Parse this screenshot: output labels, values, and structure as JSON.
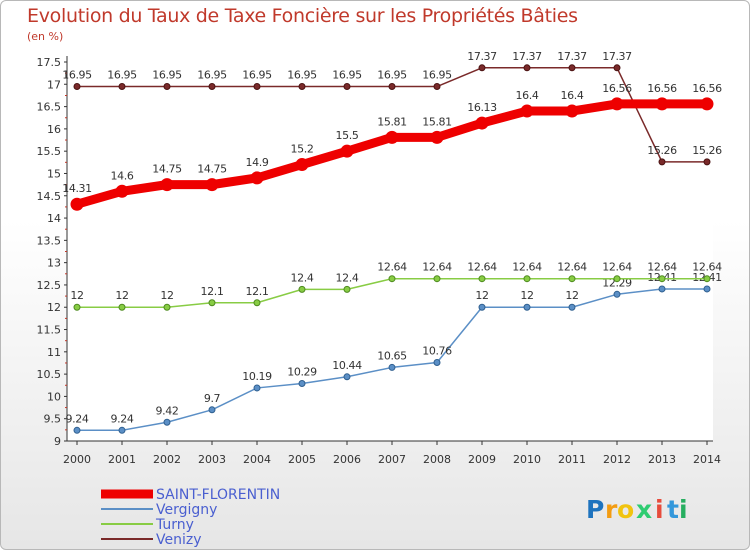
{
  "chart_data": {
    "type": "line",
    "title": "Evolution du Taux de Taxe Foncière sur les Propriétés Bâties",
    "subtitle": "(en %)",
    "x": [
      2000,
      2001,
      2002,
      2003,
      2004,
      2005,
      2006,
      2007,
      2008,
      2009,
      2010,
      2011,
      2012,
      2013,
      2014
    ],
    "ylim": [
      9,
      17.5
    ],
    "yticks": [
      9,
      9.5,
      10,
      10.5,
      11,
      11.5,
      12,
      12.5,
      13,
      13.5,
      14,
      14.5,
      15,
      15.5,
      16,
      16.5,
      17,
      17.5
    ],
    "series": [
      {
        "name": "SAINT-FLORENTIN",
        "color": "#ee0000",
        "labels": [
          "14.31",
          "14.6",
          "14.75",
          "14.75",
          "14.9",
          "15.2",
          "15.5",
          "15.81",
          "15.81",
          "16.13",
          "16.4",
          "16.4",
          "16.56",
          "16.56",
          "16.56"
        ],
        "values": [
          14.31,
          14.6,
          14.75,
          14.75,
          14.9,
          15.2,
          15.5,
          15.81,
          15.81,
          16.13,
          16.4,
          16.4,
          16.56,
          16.56,
          16.56
        ]
      },
      {
        "name": "Vergigny",
        "color": "#5b8fc6",
        "labels": [
          "9.24",
          "9.24",
          "9.42",
          "9.7",
          "10.19",
          "10.29",
          "10.44",
          "10.65",
          "10.76",
          "12",
          "12",
          "12",
          "12.29",
          "12.41",
          "12.41"
        ],
        "values": [
          9.24,
          9.24,
          9.42,
          9.7,
          10.19,
          10.29,
          10.44,
          10.65,
          10.76,
          12,
          12,
          12,
          12.29,
          12.41,
          12.41
        ]
      },
      {
        "name": "Turny",
        "color": "#88cc44",
        "labels": [
          "12",
          "12",
          "12",
          "12.1",
          "12.1",
          "12.4",
          "12.4",
          "12.64",
          "12.64",
          "12.64",
          "12.64",
          "12.64",
          "12.64",
          "12.64",
          "12.64"
        ],
        "values": [
          12,
          12,
          12,
          12.1,
          12.1,
          12.4,
          12.4,
          12.64,
          12.64,
          12.64,
          12.64,
          12.64,
          12.64,
          12.64,
          12.64
        ]
      },
      {
        "name": "Venizy",
        "color": "#7a2a2a",
        "labels": [
          "16.95",
          "16.95",
          "16.95",
          "16.95",
          "16.95",
          "16.95",
          "16.95",
          "16.95",
          "16.95",
          "17.37",
          "17.37",
          "17.37",
          "17.37",
          "15.26",
          "15.26"
        ],
        "values": [
          16.95,
          16.95,
          16.95,
          16.95,
          16.95,
          16.95,
          16.95,
          16.95,
          16.95,
          17.37,
          17.37,
          17.37,
          17.37,
          15.26,
          15.26
        ]
      }
    ]
  },
  "brand": {
    "letters": [
      "P",
      "r",
      "o",
      "x",
      "i",
      "t",
      "i"
    ],
    "colors": [
      "#1e73be",
      "#f39c12",
      "#f1c40f",
      "#2ecc71",
      "#e74c3c",
      "#3498db",
      "#27ae60"
    ]
  }
}
